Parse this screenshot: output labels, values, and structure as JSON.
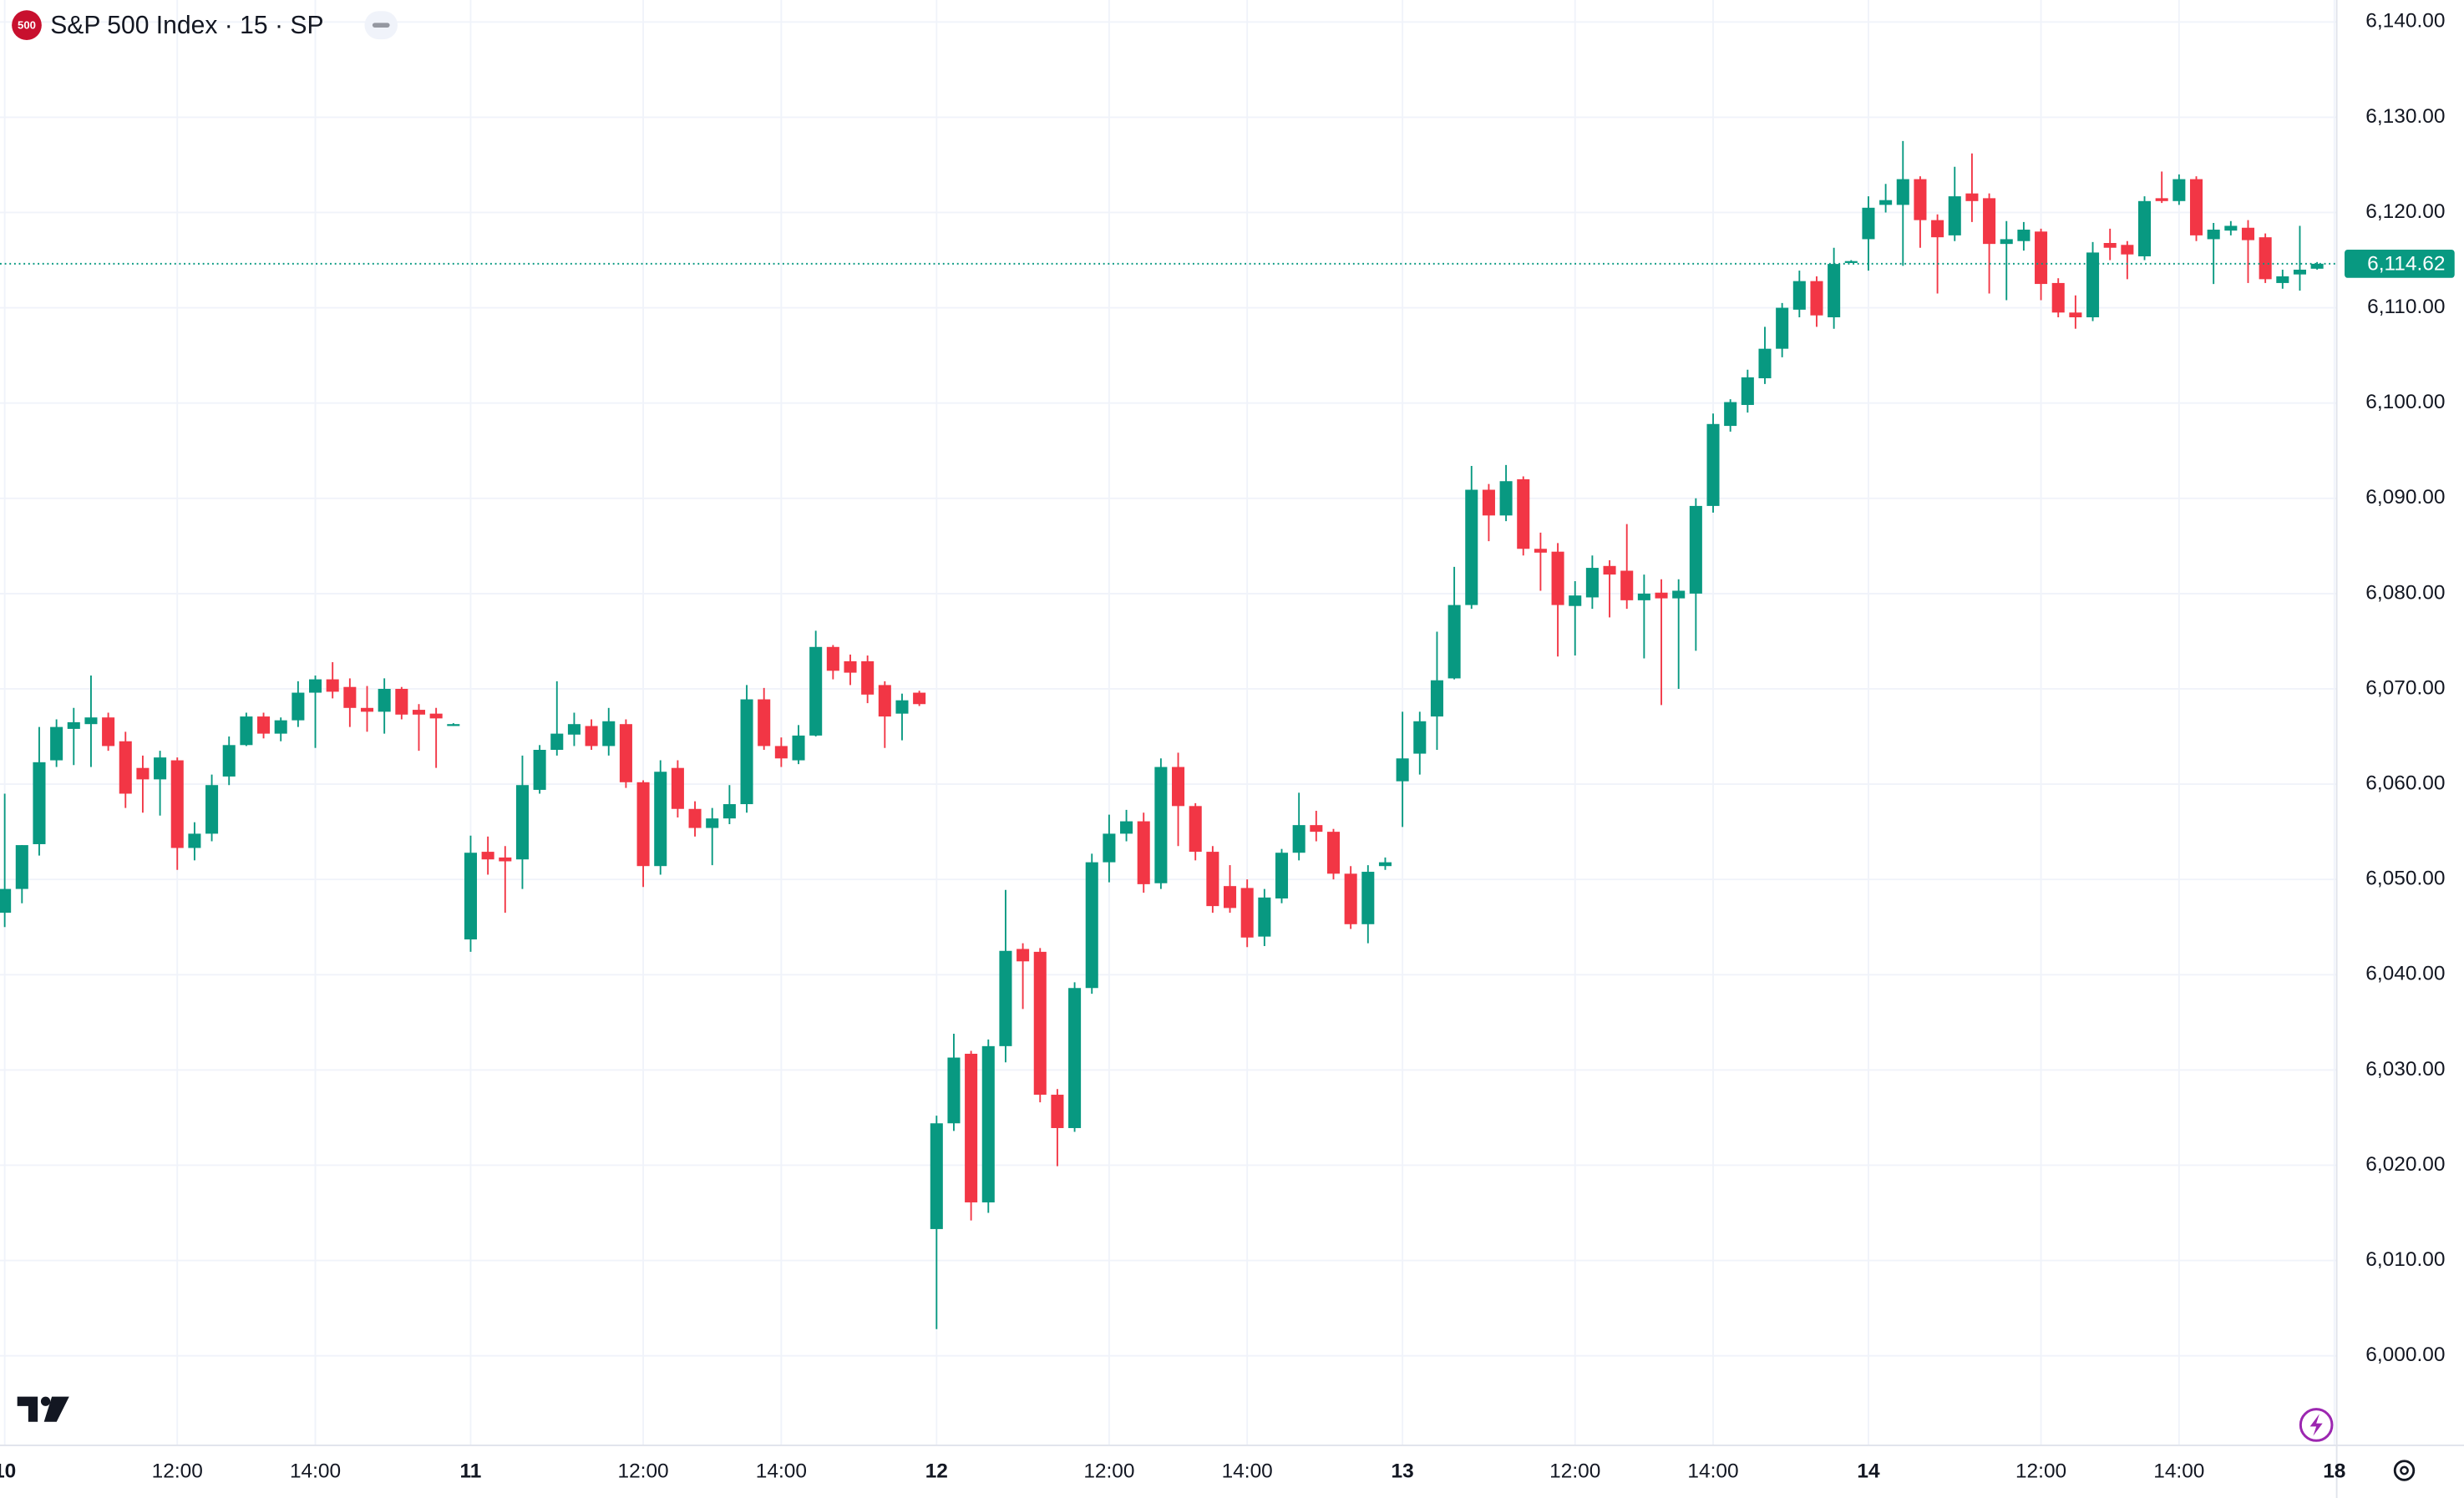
{
  "chart_data": {
    "type": "candlestick",
    "title": "S&P 500 Index · 15 · SP",
    "symbol_badge": "500",
    "up_color": "#089981",
    "down_color": "#f23645",
    "grid": true,
    "x": [
      "10 09:30",
      "10 09:45",
      "10 10:00",
      "10 10:15",
      "10 10:30",
      "10 10:45",
      "10 11:00",
      "10 11:15",
      "10 11:30",
      "10 11:45",
      "10 12:00",
      "10 12:15",
      "10 12:30",
      "10 12:45",
      "10 13:00",
      "10 13:15",
      "10 13:30",
      "10 13:45",
      "10 14:00",
      "10 14:15",
      "10 14:30",
      "10 14:45",
      "10 15:00",
      "10 15:15",
      "10 15:30",
      "10 15:45",
      "10 16:00",
      "11 09:30",
      "11 09:45",
      "11 10:00",
      "11 10:15",
      "11 10:30",
      "11 10:45",
      "11 11:00",
      "11 11:15",
      "11 11:30",
      "11 11:45",
      "11 12:00",
      "11 12:15",
      "11 12:30",
      "11 12:45",
      "11 13:00",
      "11 13:15",
      "11 13:30",
      "11 13:45",
      "11 14:00",
      "11 14:15",
      "11 14:30",
      "11 14:45",
      "11 15:00",
      "11 15:15",
      "11 15:30",
      "11 15:45",
      "11 16:00",
      "12 09:30",
      "12 09:45",
      "12 10:00",
      "12 10:15",
      "12 10:30",
      "12 10:45",
      "12 11:00",
      "12 11:15",
      "12 11:30",
      "12 11:45",
      "12 12:00",
      "12 12:15",
      "12 12:30",
      "12 12:45",
      "12 13:00",
      "12 13:15",
      "12 13:30",
      "12 13:45",
      "12 14:00",
      "12 14:15",
      "12 14:30",
      "12 14:45",
      "12 15:00",
      "12 15:15",
      "12 15:30",
      "12 15:45",
      "12 16:00",
      "13 09:30",
      "13 09:45",
      "13 10:00",
      "13 10:15",
      "13 10:30",
      "13 10:45",
      "13 11:00",
      "13 11:15",
      "13 11:30",
      "13 11:45",
      "13 12:00",
      "13 12:15",
      "13 12:30",
      "13 12:45",
      "13 13:00",
      "13 13:15",
      "13 13:30",
      "13 13:45",
      "13 14:00",
      "13 14:15",
      "13 14:30",
      "13 14:45",
      "13 15:00",
      "13 15:15",
      "13 15:30",
      "13 15:45",
      "13 16:00",
      "14 09:30",
      "14 09:45",
      "14 10:00",
      "14 10:15",
      "14 10:30",
      "14 10:45",
      "14 11:00",
      "14 11:15",
      "14 11:30",
      "14 11:45",
      "14 12:00",
      "14 12:15",
      "14 12:30",
      "14 12:45",
      "14 13:00",
      "14 13:15",
      "14 13:30",
      "14 13:45",
      "14 14:00",
      "14 14:15",
      "14 14:30",
      "14 14:45",
      "14 15:00",
      "14 15:15",
      "14 15:30",
      "14 15:45",
      "14 16:00"
    ],
    "open": [
      6046.5,
      6049,
      6053.7,
      6062.5,
      6065.8,
      6066.3,
      6067,
      6064.5,
      6061.7,
      6060.5,
      6062.5,
      6053.3,
      6054.8,
      6060.8,
      6064.1,
      6067.1,
      6065.3,
      6066.7,
      6069.6,
      6071,
      6070.2,
      6068,
      6067.6,
      6070,
      6067.8,
      6067.4,
      6066.2,
      6043.7,
      6052.9,
      6052.3,
      6052.1,
      6059.4,
      6063.6,
      6065.2,
      6066.1,
      6064,
      6066.3,
      6060.2,
      6051.4,
      6061.7,
      6057.4,
      6055.4,
      6056.4,
      6057.9,
      6068.9,
      6064,
      6062.5,
      6065.1,
      6074.4,
      6072.9,
      6072.9,
      6070.4,
      6067.4,
      6069.6,
      6013.3,
      6024.4,
      6031.7,
      6016.1,
      6032.5,
      6042.7,
      6042.4,
      6027.4,
      6023.9,
      6038.6,
      6051.8,
      6054.8,
      6056.1,
      6049.6,
      6061.8,
      6057.7,
      6052.9,
      6049.3,
      6049.1,
      6044,
      6048,
      6052.8,
      6055.7,
      6055,
      6050.6,
      6045.3,
      6051.4,
      6060.3,
      6063.2,
      6067.1,
      6071.1,
      6078.8,
      6090.9,
      6088.2,
      6092,
      6084.7,
      6084.4,
      6078.7,
      6079.6,
      6082.9,
      6082.4,
      6079.3,
      6080.1,
      6079.5,
      6080,
      6089.2,
      6097.6,
      6099.8,
      6102.6,
      6105.7,
      6109.8,
      6112.8,
      6109,
      6114.8,
      6117.2,
      6120.8,
      6120.8,
      6123.5,
      6119.2,
      6117.6,
      6122,
      6121.5,
      6116.7,
      6117,
      6118,
      6112.6,
      6109.5,
      6109,
      6116.8,
      6116.6,
      6115.4,
      6121.5,
      6121.2,
      6123.5,
      6117.2,
      6118.1,
      6118.4,
      6117.4,
      6112.6,
      6113.5,
      6114.1
    ],
    "high": [
      6059,
      6053.6,
      6066,
      6066.8,
      6068,
      6071.4,
      6067.5,
      6065.5,
      6063,
      6063.5,
      6062.8,
      6056,
      6061,
      6065,
      6067.5,
      6067.5,
      6067,
      6070.8,
      6071.4,
      6072.8,
      6071.1,
      6070.3,
      6071.1,
      6070.2,
      6068.4,
      6068,
      6066.4,
      6054.6,
      6054.5,
      6053.5,
      6063,
      6064.1,
      6070.8,
      6067.5,
      6066.8,
      6068,
      6066.8,
      6060.4,
      6062.5,
      6062.5,
      6058.2,
      6057.5,
      6059.9,
      6070.4,
      6070.1,
      6064.9,
      6066.2,
      6076.1,
      6074.6,
      6073.6,
      6073.5,
      6070.8,
      6069.5,
      6069.8,
      6025.2,
      6033.8,
      6032,
      6033.2,
      6048.9,
      6043.3,
      6042.8,
      6028,
      6039.2,
      6052.7,
      6056.8,
      6057.3,
      6057,
      6062.7,
      6063.3,
      6058,
      6053.5,
      6051.5,
      6050,
      6049,
      6053.2,
      6059.1,
      6057.2,
      6055.3,
      6051.4,
      6051.5,
      6052.3,
      6067.6,
      6067.6,
      6076,
      6082.8,
      6093.4,
      6091.5,
      6093.5,
      6092.3,
      6086.4,
      6085.3,
      6081.3,
      6084,
      6083.5,
      6087.3,
      6082,
      6081.5,
      6081.5,
      6090,
      6098.9,
      6100.4,
      6103.5,
      6108,
      6110.5,
      6113.9,
      6113.3,
      6116.3,
      6115,
      6121.7,
      6123,
      6127.5,
      6123.8,
      6119.8,
      6124.8,
      6126.2,
      6122,
      6119.1,
      6119,
      6118.3,
      6113.1,
      6111.3,
      6116.9,
      6118.3,
      6117,
      6121.7,
      6124.3,
      6124,
      6123.8,
      6118.9,
      6119.1,
      6119.2,
      6117.8,
      6114,
      6118.6,
      6114.8
    ],
    "low": [
      6045,
      6047.5,
      6052.5,
      6061.8,
      6062,
      6061.8,
      6063.5,
      6057.5,
      6057,
      6056.7,
      6051,
      6052,
      6054,
      6059.9,
      6064,
      6064.8,
      6064.5,
      6066,
      6063.8,
      6069,
      6066,
      6065.5,
      6065.3,
      6066.8,
      6063.5,
      6061.7,
      6066.1,
      6042.4,
      6050.5,
      6046.5,
      6049,
      6059,
      6063,
      6064,
      6063.6,
      6063,
      6059.6,
      6049.2,
      6050.5,
      6056.5,
      6054.5,
      6051.5,
      6055.8,
      6057,
      6063.6,
      6061.8,
      6062.1,
      6065,
      6071,
      6070.4,
      6068.5,
      6063.8,
      6064.6,
      6068.2,
      6002.8,
      6023.6,
      6014.2,
      6015,
      6030.8,
      6036.4,
      6026.6,
      6019.9,
      6023.5,
      6038,
      6049.7,
      6054,
      6048.6,
      6049,
      6053.5,
      6052,
      6046.5,
      6046.5,
      6042.9,
      6043,
      6047.5,
      6052,
      6054,
      6050,
      6044.8,
      6043.3,
      6051,
      6055.5,
      6061,
      6063.6,
      6071,
      6078.4,
      6085.5,
      6087.6,
      6084,
      6080.3,
      6073.4,
      6073.5,
      6078.4,
      6077.5,
      6078.4,
      6073.2,
      6068.3,
      6070,
      6074,
      6088.5,
      6097,
      6099,
      6102,
      6104.8,
      6109,
      6108,
      6107.8,
      6114.7,
      6113.9,
      6120,
      6114.4,
      6116.3,
      6111.5,
      6117,
      6119,
      6111.5,
      6110.8,
      6116,
      6110.8,
      6109,
      6107.8,
      6108.6,
      6115,
      6113,
      6115,
      6121,
      6120.8,
      6117,
      6112.5,
      6117.6,
      6112.6,
      6112.6,
      6112,
      6111.8,
      6114
    ],
    "close": [
      6049,
      6053.6,
      6062.3,
      6066,
      6066.5,
      6067,
      6064,
      6059,
      6060.5,
      6062.8,
      6053.3,
      6054.8,
      6059.9,
      6064.1,
      6067.1,
      6065.3,
      6066.7,
      6069.6,
      6071,
      6069.7,
      6068,
      6067.6,
      6070,
      6067.3,
      6067.3,
      6066.9,
      6066.3,
      6052.8,
      6052.1,
      6051.9,
      6059.9,
      6063.6,
      6065.3,
      6066.3,
      6064,
      6066.6,
      6060.2,
      6051.4,
      6061.3,
      6057.4,
      6055.4,
      6056.4,
      6057.9,
      6068.9,
      6064,
      6062.7,
      6065.1,
      6074.4,
      6071.9,
      6071.7,
      6069.4,
      6067.1,
      6068.8,
      6068.4,
      6024.4,
      6031.3,
      6016.1,
      6032.5,
      6042.5,
      6041.4,
      6027.4,
      6023.9,
      6038.6,
      6051.8,
      6054.8,
      6056.1,
      6049.5,
      6061.8,
      6057.7,
      6052.9,
      6047.2,
      6047,
      6043.9,
      6048.1,
      6052.8,
      6055.7,
      6055,
      6050.6,
      6045.3,
      6050.8,
      6051.8,
      6062.7,
      6066.6,
      6070.9,
      6078.8,
      6090.9,
      6088.2,
      6091.8,
      6084.7,
      6084.3,
      6078.8,
      6079.8,
      6082.7,
      6082,
      6079.3,
      6080,
      6079.5,
      6080.3,
      6089.2,
      6097.8,
      6100.1,
      6102.7,
      6105.7,
      6110,
      6112.8,
      6109.2,
      6114.6,
      6114.9,
      6120.5,
      6121.3,
      6123.5,
      6119.2,
      6117.4,
      6121.7,
      6121.2,
      6116.7,
      6117.2,
      6118.2,
      6112.5,
      6109.5,
      6109,
      6115.8,
      6116.3,
      6115.6,
      6121.2,
      6121.2,
      6123.5,
      6117.6,
      6118.2,
      6118.6,
      6117.1,
      6113,
      6113.3,
      6114,
      6114.62
    ],
    "ylim": [
      5990.6,
      6142.3
    ],
    "yticks": [
      {
        "value": 6000,
        "label": "6,000.00"
      },
      {
        "value": 6010,
        "label": "6,010.00"
      },
      {
        "value": 6020,
        "label": "6,020.00"
      },
      {
        "value": 6030,
        "label": "6,030.00"
      },
      {
        "value": 6040,
        "label": "6,040.00"
      },
      {
        "value": 6050,
        "label": "6,050.00"
      },
      {
        "value": 6060,
        "label": "6,060.00"
      },
      {
        "value": 6070,
        "label": "6,070.00"
      },
      {
        "value": 6080,
        "label": "6,080.00"
      },
      {
        "value": 6090,
        "label": "6,090.00"
      },
      {
        "value": 6100,
        "label": "6,100.00"
      },
      {
        "value": 6110,
        "label": "6,110.00"
      },
      {
        "value": 6120,
        "label": "6,120.00"
      },
      {
        "value": 6130,
        "label": "6,130.00"
      },
      {
        "value": 6140,
        "label": "6,140.00"
      }
    ],
    "xticks": [
      {
        "value": "10 09:30",
        "label": "10"
      },
      {
        "value": "10 12:00",
        "label": "12:00"
      },
      {
        "value": "10 14:00",
        "label": "14:00"
      },
      {
        "value": "11 09:30",
        "label": "11"
      },
      {
        "value": "11 12:00",
        "label": "12:00"
      },
      {
        "value": "11 14:00",
        "label": "14:00"
      },
      {
        "value": "12 09:30",
        "label": "12"
      },
      {
        "value": "12 12:00",
        "label": "12:00"
      },
      {
        "value": "12 14:00",
        "label": "14:00"
      },
      {
        "value": "13 09:30",
        "label": "13"
      },
      {
        "value": "13 12:00",
        "label": "12:00"
      },
      {
        "value": "13 14:00",
        "label": "14:00"
      },
      {
        "value": "14 09:30",
        "label": "14"
      },
      {
        "value": "14 12:00",
        "label": "12:00"
      },
      {
        "value": "14 14:00",
        "label": "14:00"
      },
      {
        "value": "18 09:30",
        "label": "18"
      }
    ],
    "last_price": {
      "value": 6114.62,
      "label": "6,114.62"
    }
  }
}
